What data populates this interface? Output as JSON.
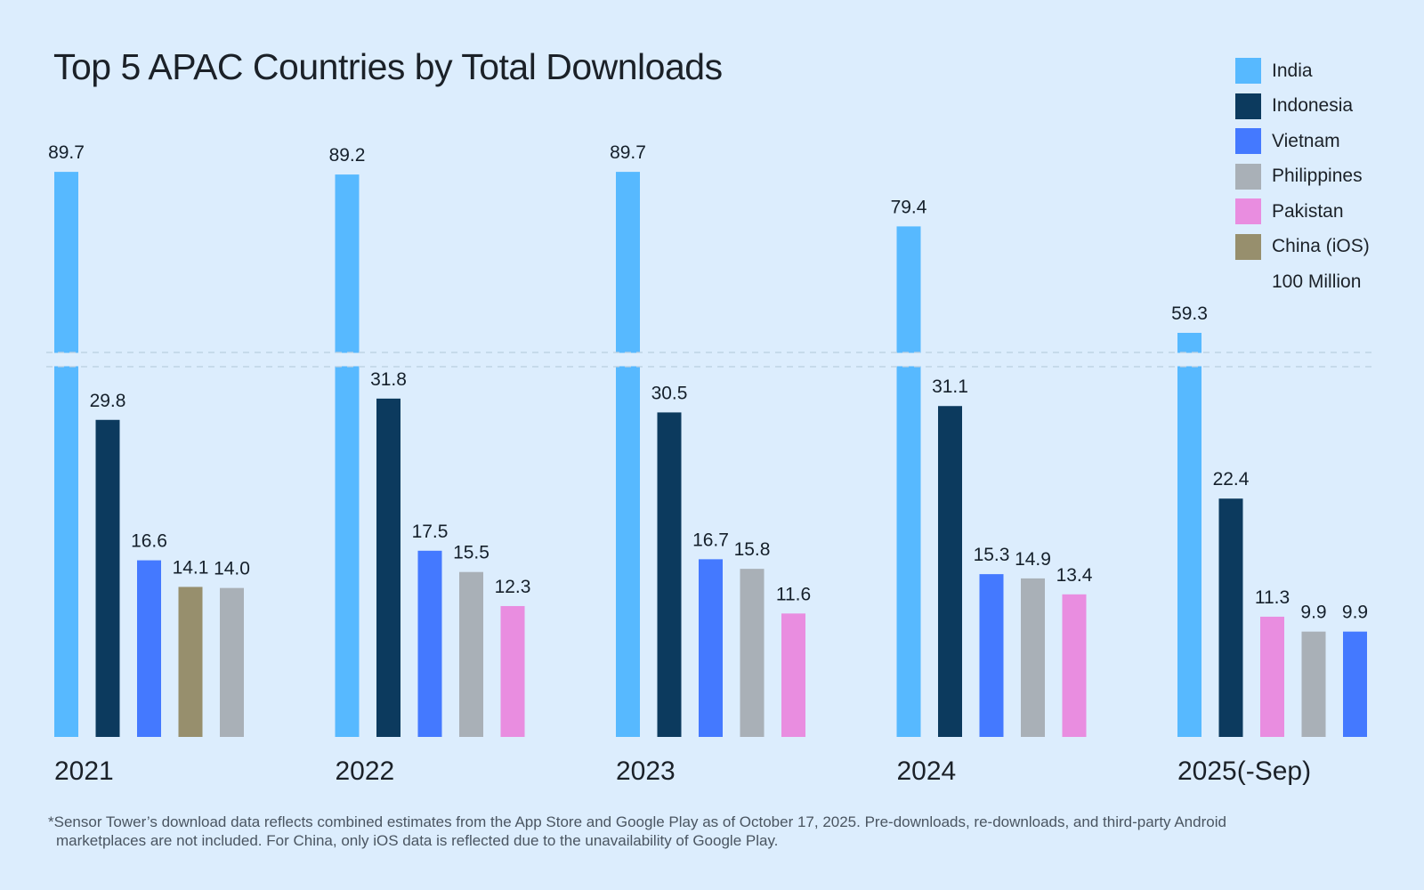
{
  "chart_data": {
    "type": "bar",
    "title": "Top 5 APAC Countries by Total Downloads",
    "unit_note": "100 Million",
    "xlabel": "",
    "ylabel": "",
    "axis_break": {
      "lower_max": 34.8,
      "upper_min": 55.6
    },
    "ylim": [
      0,
      92
    ],
    "grid": false,
    "legend_position": "top-right",
    "legend": [
      {
        "name": "India",
        "color": "#57b9ff"
      },
      {
        "name": "Indonesia",
        "color": "#0c3a5e"
      },
      {
        "name": "Vietnam",
        "color": "#4479ff"
      },
      {
        "name": "Philippines",
        "color": "#a9b0b7"
      },
      {
        "name": "Pakistan",
        "color": "#e98de0"
      },
      {
        "name": "China (iOS)",
        "color": "#978f6d"
      }
    ],
    "groups": [
      {
        "label": "2021",
        "bars": [
          {
            "country": "India",
            "value": 89.7,
            "label": "89.7"
          },
          {
            "country": "Indonesia",
            "value": 29.8,
            "label": "29.8"
          },
          {
            "country": "Vietnam",
            "value": 16.6,
            "label": "16.6"
          },
          {
            "country": "China (iOS)",
            "value": 14.1,
            "label": "14.1"
          },
          {
            "country": "Philippines",
            "value": 14.0,
            "label": "14.0"
          }
        ]
      },
      {
        "label": "2022",
        "bars": [
          {
            "country": "India",
            "value": 89.2,
            "label": "89.2"
          },
          {
            "country": "Indonesia",
            "value": 31.8,
            "label": "31.8"
          },
          {
            "country": "Vietnam",
            "value": 17.5,
            "label": "17.5"
          },
          {
            "country": "Philippines",
            "value": 15.5,
            "label": "15.5"
          },
          {
            "country": "Pakistan",
            "value": 12.3,
            "label": "12.3"
          }
        ]
      },
      {
        "label": "2023",
        "bars": [
          {
            "country": "India",
            "value": 89.7,
            "label": "89.7"
          },
          {
            "country": "Indonesia",
            "value": 30.5,
            "label": "30.5"
          },
          {
            "country": "Vietnam",
            "value": 16.7,
            "label": "16.7"
          },
          {
            "country": "Philippines",
            "value": 15.8,
            "label": "15.8"
          },
          {
            "country": "Pakistan",
            "value": 11.6,
            "label": "11.6"
          }
        ]
      },
      {
        "label": "2024",
        "bars": [
          {
            "country": "India",
            "value": 79.4,
            "label": "79.4"
          },
          {
            "country": "Indonesia",
            "value": 31.1,
            "label": "31.1"
          },
          {
            "country": "Vietnam",
            "value": 15.3,
            "label": "15.3"
          },
          {
            "country": "Philippines",
            "value": 14.9,
            "label": "14.9"
          },
          {
            "country": "Pakistan",
            "value": 13.4,
            "label": "13.4"
          }
        ]
      },
      {
        "label": "2025(-Sep)",
        "bars": [
          {
            "country": "India",
            "value": 59.3,
            "label": "59.3"
          },
          {
            "country": "Indonesia",
            "value": 22.4,
            "label": "22.4"
          },
          {
            "country": "Pakistan",
            "value": 11.3,
            "label": "11.3"
          },
          {
            "country": "Philippines",
            "value": 9.9,
            "label": "9.9"
          },
          {
            "country": "Vietnam",
            "value": 9.9,
            "label": "9.9"
          }
        ]
      }
    ]
  },
  "footnote": {
    "line1": "*Sensor Tower’s download data reflects combined estimates from the App Store and Google Play as of October 17, 2025. Pre-downloads, re-downloads, and third-party Android",
    "line2": "marketplaces are not included. For China, only iOS data is reflected due to the unavailability of Google Play."
  }
}
